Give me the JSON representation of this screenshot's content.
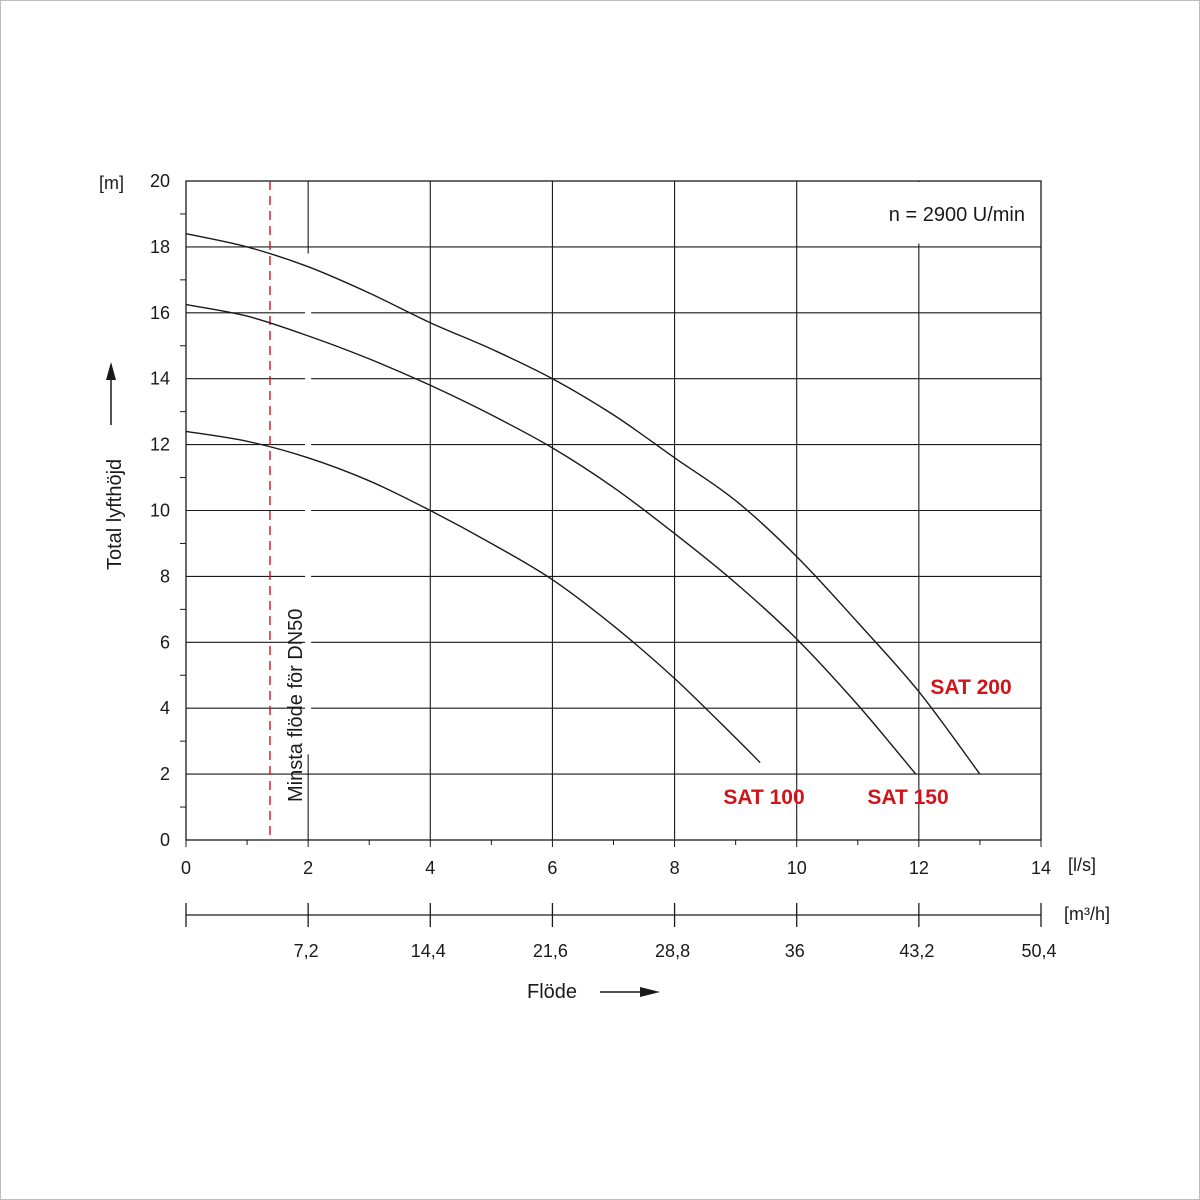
{
  "chart_data": {
    "type": "line",
    "speed_note": "n = 2900 U/min",
    "ylabel": "Total lyfthöjd",
    "y_unit": "[m]",
    "x_unit": "[l/s]",
    "x2_unit": "[m³/h]",
    "xlabel": "Flöde",
    "ylim": [
      0,
      20
    ],
    "xlim": [
      0,
      14
    ],
    "y_ticks": [
      "0",
      "2",
      "4",
      "6",
      "8",
      "10",
      "12",
      "14",
      "16",
      "18",
      "20"
    ],
    "x_ticks": [
      "0",
      "2",
      "4",
      "6",
      "8",
      "10",
      "12",
      "14"
    ],
    "x2_ticks": [
      "7,2",
      "14,4",
      "21,6",
      "28,8",
      "36",
      "43,2",
      "50,4"
    ],
    "grid": true,
    "min_flow": {
      "x": 1.375,
      "label": "Minsta flöde för DN50",
      "color": "#d0141b"
    },
    "series": [
      {
        "name": "SAT 100",
        "x": [
          0,
          1,
          2,
          3,
          4,
          5,
          6,
          7,
          8,
          9,
          9.4
        ],
        "y": [
          12.4,
          12.1,
          11.6,
          10.9,
          10.0,
          9.0,
          7.9,
          6.5,
          4.9,
          3.1,
          2.35
        ]
      },
      {
        "name": "SAT 150",
        "x": [
          0,
          1,
          2,
          3,
          4,
          5,
          6,
          7,
          8,
          9,
          10,
          11,
          11.95
        ],
        "y": [
          16.25,
          15.9,
          15.3,
          14.6,
          13.8,
          12.9,
          11.9,
          10.7,
          9.3,
          7.8,
          6.1,
          4.1,
          2.0
        ]
      },
      {
        "name": "SAT 200",
        "x": [
          0,
          1,
          2,
          3,
          4,
          5,
          6,
          7,
          8,
          9,
          10,
          11,
          12,
          13
        ],
        "y": [
          18.4,
          18.0,
          17.4,
          16.6,
          15.7,
          14.9,
          14.0,
          12.9,
          11.6,
          10.3,
          8.6,
          6.6,
          4.5,
          2.0
        ]
      }
    ]
  }
}
